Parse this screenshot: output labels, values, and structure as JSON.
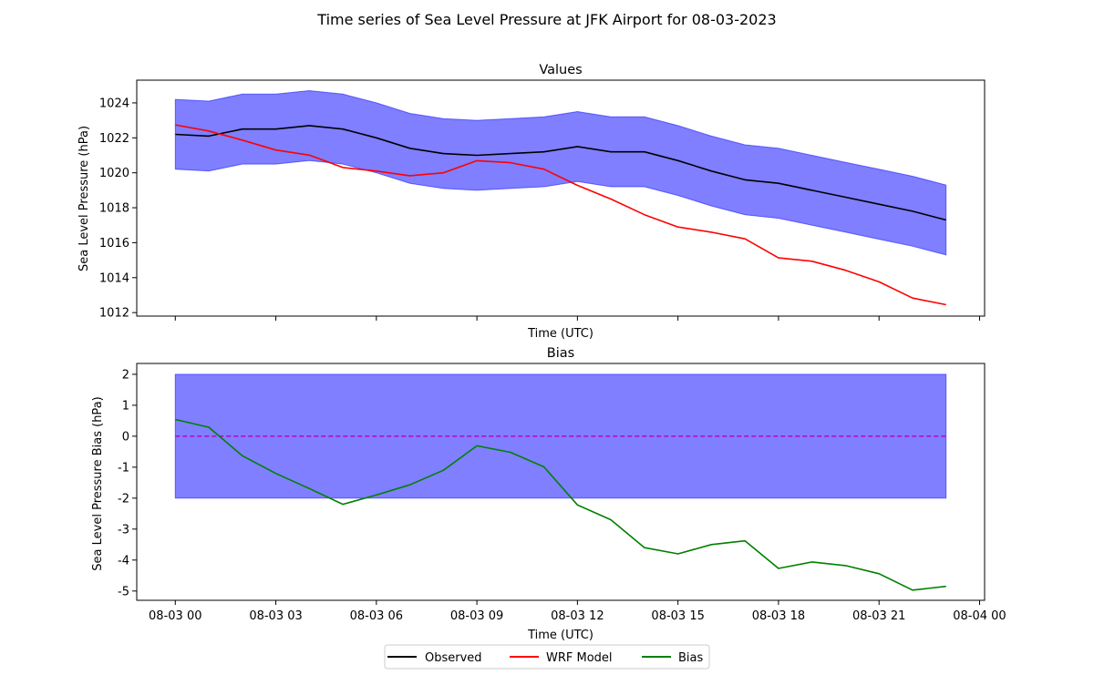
{
  "figure": {
    "suptitle": "Time series of Sea Level Pressure at JFK Airport for 08-03-2023"
  },
  "colors": {
    "observed": "#000000",
    "wrf": "#ff0000",
    "bias": "#008000",
    "band": "#0000ff",
    "zero": "#bf00bf"
  },
  "chart_data": [
    {
      "type": "line",
      "title": "Values",
      "xlabel": "Time (UTC)",
      "ylabel": "Sea Level Pressure (hPa)",
      "x_hours": [
        0,
        1,
        2,
        3,
        4,
        5,
        6,
        7,
        8,
        9,
        10,
        11,
        12,
        13,
        14,
        15,
        16,
        17,
        18,
        19,
        20,
        21,
        22,
        23
      ],
      "ylim": [
        1011.8,
        1025.3
      ],
      "yticks": [
        1012,
        1014,
        1016,
        1018,
        1020,
        1022,
        1024
      ],
      "band_halfwidth": 2,
      "grid": false,
      "series": [
        {
          "name": "Observed",
          "color": "#000000",
          "values": [
            1022.2,
            1022.1,
            1022.5,
            1022.5,
            1022.7,
            1022.5,
            1022.0,
            1021.4,
            1021.1,
            1021.0,
            1021.1,
            1021.2,
            1021.5,
            1021.2,
            1021.2,
            1020.7,
            1020.1,
            1019.6,
            1019.4,
            1019.0,
            1018.6,
            1018.2,
            1017.8,
            1017.3
          ]
        },
        {
          "name": "WRF Model",
          "color": "#ff0000",
          "values": [
            1022.74,
            1022.39,
            1021.87,
            1021.3,
            1021.01,
            1020.3,
            1020.1,
            1019.83,
            1020.0,
            1020.69,
            1020.58,
            1020.21,
            1019.28,
            1018.5,
            1017.6,
            1016.9,
            1016.6,
            1016.22,
            1015.13,
            1014.94,
            1014.42,
            1013.76,
            1012.83,
            1012.45
          ]
        }
      ]
    },
    {
      "type": "line",
      "title": "Bias",
      "xlabel": "Time (UTC)",
      "ylabel": "Sea Level Pressure Bias (hPa)",
      "x_hours": [
        0,
        1,
        2,
        3,
        4,
        5,
        6,
        7,
        8,
        9,
        10,
        11,
        12,
        13,
        14,
        15,
        16,
        17,
        18,
        19,
        20,
        21,
        22,
        23
      ],
      "ylim": [
        -5.3,
        2.35
      ],
      "yticks": [
        -5,
        -4,
        -3,
        -2,
        -1,
        0,
        1,
        2
      ],
      "band": [
        -2,
        2
      ],
      "zero_line": 0,
      "grid": false,
      "series": [
        {
          "name": "Bias",
          "color": "#008000",
          "values": [
            0.54,
            0.29,
            -0.63,
            -1.2,
            -1.69,
            -2.2,
            -1.9,
            -1.57,
            -1.1,
            -0.31,
            -0.52,
            -0.99,
            -2.22,
            -2.7,
            -3.6,
            -3.8,
            -3.5,
            -3.38,
            -4.27,
            -4.06,
            -4.18,
            -4.44,
            -4.97,
            -4.85
          ]
        }
      ]
    }
  ],
  "x_axis": {
    "tick_hours": [
      0,
      3,
      6,
      9,
      12,
      15,
      18,
      21,
      24
    ],
    "tick_labels": [
      "08-03 00",
      "08-03 03",
      "08-03 06",
      "08-03 09",
      "08-03 12",
      "08-03 15",
      "08-03 18",
      "08-03 21",
      "08-04 00"
    ],
    "xlim_hours": [
      -1.15,
      24.15
    ]
  },
  "legend": {
    "placement": "bottom-center",
    "items": [
      {
        "label": "Observed",
        "color": "#000000"
      },
      {
        "label": "WRF Model",
        "color": "#ff0000"
      },
      {
        "label": "Bias",
        "color": "#008000"
      }
    ]
  }
}
